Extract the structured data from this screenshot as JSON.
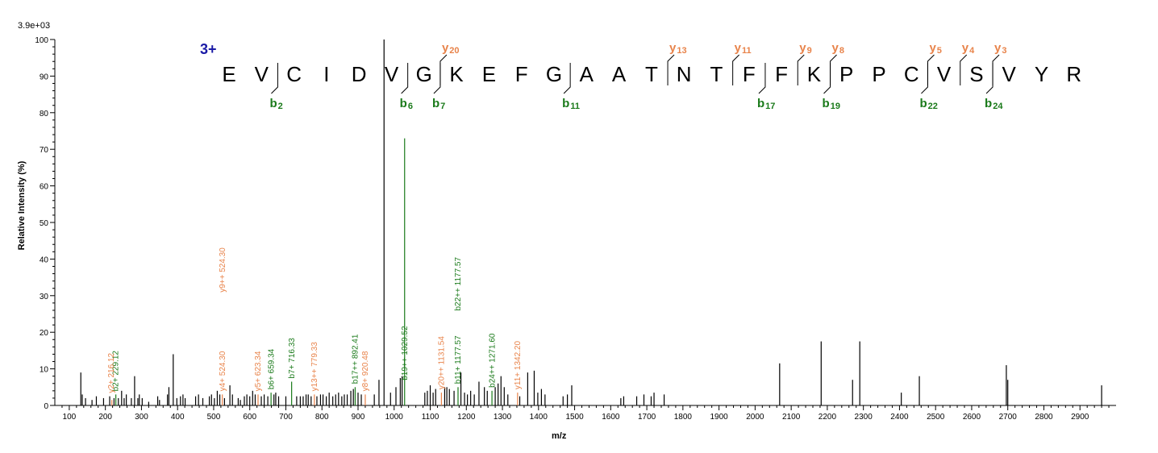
{
  "colors": {
    "b_ion": "#1a7a1a",
    "y_ion": "#e8834a",
    "peak": "#000000",
    "charge": "#1a1aa6"
  },
  "chart_data": {
    "type": "bar",
    "title": "",
    "xlabel": "m/z",
    "ylabel": "Relative   Intensity (%)",
    "scale_label": "3.9e+03",
    "charge_label": "3+",
    "xlim": [
      60,
      3000
    ],
    "ylim": [
      0,
      100
    ],
    "x_ticks": [
      100,
      200,
      300,
      400,
      500,
      600,
      700,
      800,
      900,
      1000,
      1100,
      1200,
      1300,
      1400,
      1500,
      1600,
      1700,
      1800,
      1900,
      2000,
      2100,
      2200,
      2300,
      2400,
      2500,
      2600,
      2700,
      2800,
      2900
    ],
    "y_ticks": [
      0,
      10,
      20,
      30,
      40,
      50,
      60,
      70,
      80,
      90,
      100
    ],
    "peptide": [
      "E",
      "V",
      "C",
      "I",
      "D",
      "V",
      "G",
      "K",
      "E",
      "F",
      "G",
      "A",
      "A",
      "T",
      "N",
      "T",
      "F",
      "F",
      "K",
      "P",
      "P",
      "C",
      "V",
      "S",
      "V",
      "Y",
      "R"
    ],
    "b_ions": [
      {
        "label": "b",
        "sub": "2",
        "after": 2
      },
      {
        "label": "b",
        "sub": "6",
        "after": 6
      },
      {
        "label": "b",
        "sub": "7",
        "after": 7
      },
      {
        "label": "b",
        "sub": "11",
        "after": 11
      },
      {
        "label": "b",
        "sub": "17",
        "after": 17
      },
      {
        "label": "b",
        "sub": "19",
        "after": 19
      },
      {
        "label": "b",
        "sub": "22",
        "after": 22
      },
      {
        "label": "b",
        "sub": "24",
        "after": 24
      }
    ],
    "y_ions": [
      {
        "label": "y",
        "sub": "20",
        "after": 7
      },
      {
        "label": "y",
        "sub": "13",
        "after": 14
      },
      {
        "label": "y",
        "sub": "11",
        "after": 16
      },
      {
        "label": "y",
        "sub": "9",
        "after": 18
      },
      {
        "label": "y",
        "sub": "8",
        "after": 19
      },
      {
        "label": "y",
        "sub": "5",
        "after": 22
      },
      {
        "label": "y",
        "sub": "4",
        "after": 23
      },
      {
        "label": "y",
        "sub": "3",
        "after": 24
      }
    ],
    "peaks": [
      [
        132,
        9
      ],
      [
        136,
        3
      ],
      [
        145,
        2
      ],
      [
        163,
        1.5
      ],
      [
        175,
        2.5
      ],
      [
        195,
        2
      ],
      [
        212,
        2.5
      ],
      [
        218,
        1.5
      ],
      [
        224,
        2
      ],
      [
        229,
        3
      ],
      [
        236,
        2
      ],
      [
        245,
        4
      ],
      [
        252,
        2
      ],
      [
        258,
        3
      ],
      [
        272,
        2
      ],
      [
        281,
        8
      ],
      [
        290,
        2
      ],
      [
        294,
        3
      ],
      [
        302,
        2
      ],
      [
        320,
        1
      ],
      [
        345,
        2.5
      ],
      [
        350,
        1.5
      ],
      [
        372,
        3
      ],
      [
        376,
        5
      ],
      [
        388,
        14
      ],
      [
        398,
        2
      ],
      [
        408,
        2.5
      ],
      [
        415,
        3
      ],
      [
        421,
        2
      ],
      [
        450,
        2.5
      ],
      [
        458,
        3
      ],
      [
        470,
        2
      ],
      [
        488,
        2.5
      ],
      [
        494,
        3
      ],
      [
        502,
        2
      ],
      [
        510,
        4
      ],
      [
        517,
        3
      ],
      [
        524,
        3
      ],
      [
        530,
        2
      ],
      [
        545,
        5.5
      ],
      [
        552,
        3
      ],
      [
        568,
        2
      ],
      [
        574,
        1.5
      ],
      [
        585,
        2.5
      ],
      [
        592,
        3
      ],
      [
        600,
        2.5
      ],
      [
        608,
        4
      ],
      [
        615,
        3
      ],
      [
        623,
        3
      ],
      [
        632,
        2.5
      ],
      [
        640,
        3
      ],
      [
        650,
        2.5
      ],
      [
        659,
        3.5
      ],
      [
        667,
        3
      ],
      [
        672,
        3.5
      ],
      [
        680,
        2.5
      ],
      [
        700,
        2.5
      ],
      [
        716,
        6.5
      ],
      [
        730,
        2.5
      ],
      [
        740,
        2.5
      ],
      [
        748,
        2.5
      ],
      [
        756,
        3
      ],
      [
        762,
        3
      ],
      [
        770,
        2.5
      ],
      [
        779,
        3
      ],
      [
        786,
        2.5
      ],
      [
        796,
        3
      ],
      [
        803,
        3
      ],
      [
        812,
        2.5
      ],
      [
        820,
        3.5
      ],
      [
        830,
        2.5
      ],
      [
        838,
        3
      ],
      [
        846,
        3.5
      ],
      [
        855,
        2.5
      ],
      [
        862,
        3
      ],
      [
        870,
        3
      ],
      [
        880,
        4
      ],
      [
        887,
        4.5
      ],
      [
        892,
        5
      ],
      [
        900,
        3.5
      ],
      [
        909,
        3
      ],
      [
        920,
        3
      ],
      [
        945,
        3
      ],
      [
        958,
        7
      ],
      [
        972,
        100
      ],
      [
        990,
        3.5
      ],
      [
        1005,
        5
      ],
      [
        1017,
        7.5
      ],
      [
        1022,
        8
      ],
      [
        1029,
        73
      ],
      [
        1085,
        3.5
      ],
      [
        1092,
        4
      ],
      [
        1100,
        5.5
      ],
      [
        1108,
        3.5
      ],
      [
        1115,
        4.5
      ],
      [
        1131,
        3.5
      ],
      [
        1140,
        5
      ],
      [
        1146,
        5
      ],
      [
        1153,
        4.5
      ],
      [
        1166,
        4
      ],
      [
        1177,
        5
      ],
      [
        1185,
        9
      ],
      [
        1195,
        3.5
      ],
      [
        1203,
        3
      ],
      [
        1212,
        4
      ],
      [
        1222,
        3
      ],
      [
        1235,
        6.5
      ],
      [
        1250,
        5
      ],
      [
        1258,
        4
      ],
      [
        1271,
        4
      ],
      [
        1280,
        5
      ],
      [
        1288,
        6
      ],
      [
        1296,
        8
      ],
      [
        1305,
        5
      ],
      [
        1315,
        3
      ],
      [
        1342,
        3.5
      ],
      [
        1348,
        2.5
      ],
      [
        1370,
        9
      ],
      [
        1388,
        9.5
      ],
      [
        1398,
        3.5
      ],
      [
        1408,
        4.5
      ],
      [
        1418,
        3
      ],
      [
        1468,
        2.5
      ],
      [
        1480,
        3
      ],
      [
        1492,
        5.5
      ],
      [
        1628,
        2
      ],
      [
        1636,
        2.5
      ],
      [
        1672,
        2.5
      ],
      [
        1692,
        3
      ],
      [
        1712,
        2.5
      ],
      [
        1720,
        3.5
      ],
      [
        1748,
        3
      ],
      [
        2068,
        11.5
      ],
      [
        2183,
        17.5
      ],
      [
        2270,
        7
      ],
      [
        2290,
        17.5
      ],
      [
        2405,
        3.5
      ],
      [
        2455,
        8
      ],
      [
        2696,
        11
      ],
      [
        2700,
        7
      ],
      [
        2960,
        5.5
      ]
    ],
    "peak_labels": [
      {
        "x": 229.12,
        "y": 3,
        "text": "b2+ 229.12",
        "ion": "b"
      },
      {
        "x": 216.12,
        "y": 2.5,
        "text": "y2+ 216.12",
        "ion": "y"
      },
      {
        "x": 524.3,
        "y": 3,
        "text": "y4+ 524.30",
        "ion": "y"
      },
      {
        "x": 524.3,
        "y": 30,
        "text": "y9++ 524.30",
        "ion": "y"
      },
      {
        "x": 623.34,
        "y": 3,
        "text": "y5+ 623.34",
        "ion": "y"
      },
      {
        "x": 659.34,
        "y": 3.5,
        "text": "b6+ 659.34",
        "ion": "b"
      },
      {
        "x": 716.33,
        "y": 6.5,
        "text": "b7+ 716.33",
        "ion": "b"
      },
      {
        "x": 779.33,
        "y": 3,
        "text": "y13++ 779.33",
        "ion": "y"
      },
      {
        "x": 892.41,
        "y": 5,
        "text": "b17++ 892.41",
        "ion": "b"
      },
      {
        "x": 920.48,
        "y": 3,
        "text": "y8+ 920.48",
        "ion": "y"
      },
      {
        "x": 1029.52,
        "y": 6,
        "text": "b19++ 1029.52",
        "ion": "b"
      },
      {
        "x": 1131.54,
        "y": 3.5,
        "text": "y20++ 1131.54",
        "ion": "y"
      },
      {
        "x": 1177.57,
        "y": 5,
        "text": "b11+ 1177.57",
        "ion": "b"
      },
      {
        "x": 1177.57,
        "y": 25,
        "text": "b22++ 1177.57",
        "ion": "b"
      },
      {
        "x": 1271.6,
        "y": 4,
        "text": "b24++ 1271.60",
        "ion": "b"
      },
      {
        "x": 1342.2,
        "y": 3.5,
        "text": "y11+ 1342.20",
        "ion": "y"
      }
    ]
  }
}
